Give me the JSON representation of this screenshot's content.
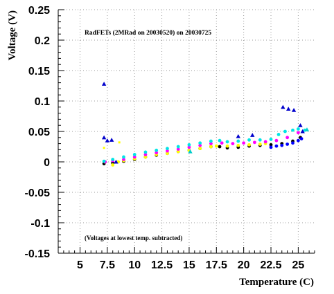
{
  "chart_data": {
    "type": "scatter",
    "title": "RadFETs (2MRad on 20030520) on 20030725",
    "annotation": "(Voltages at lowest temp. subtracted)",
    "xlabel": "Temperature (C)",
    "ylabel": "Voltage (V)",
    "xlim": [
      3.0,
      26.5
    ],
    "ylim": [
      -0.15,
      0.25
    ],
    "x_ticks": [
      5,
      7.5,
      10,
      12.5,
      15,
      17.5,
      20,
      22.5,
      25
    ],
    "x_tick_labels": [
      "5",
      "7.5",
      "10",
      "12.5",
      "15",
      "17.5",
      "20",
      "22.5",
      "25"
    ],
    "y_ticks": [
      -0.15,
      -0.1,
      -0.05,
      0,
      0.05,
      0.1,
      0.15,
      0.2,
      0.25
    ],
    "y_tick_labels": [
      "-0.15",
      "-0.1",
      "-0.05",
      "0",
      "0.05",
      "0.1",
      "0.15",
      "0.2",
      "0.25"
    ],
    "grid": true,
    "colors": {
      "background": "#ffffff",
      "axis": "#000000",
      "grid": "#9a9a9a"
    },
    "series": [
      {
        "color": "#000000",
        "marker": "dot",
        "x": [
          7.2,
          8.0,
          9.0,
          10.0,
          11.0,
          12.0,
          13.0,
          14.0,
          15.0,
          16.0,
          17.0,
          17.8,
          18.5,
          19.5,
          20.5,
          21.5,
          22.5,
          23.5,
          24.5,
          25.2
        ],
        "y": [
          -0.003,
          -0.002,
          0.001,
          0.004,
          0.008,
          0.011,
          0.014,
          0.017,
          0.019,
          0.022,
          0.025,
          0.025,
          0.023,
          0.024,
          0.026,
          0.027,
          0.028,
          0.03,
          0.034,
          0.04
        ]
      },
      {
        "color": "#ffff00",
        "marker": "dot",
        "x": [
          7.3,
          8.0,
          8.5,
          9.0,
          10.0,
          11.0,
          12.0,
          13.0,
          14.0,
          15.0,
          16.0,
          17.0,
          17.5,
          18.5,
          19.5,
          20.5,
          21.5,
          22.0
        ],
        "y": [
          0.0,
          -0.005,
          0.0,
          0.002,
          0.005,
          0.008,
          0.012,
          0.014,
          0.017,
          0.019,
          0.022,
          0.025,
          0.026,
          0.026,
          0.027,
          0.028,
          0.029,
          0.03
        ]
      },
      {
        "color": "#ff00ff",
        "marker": "dot",
        "x": [
          7.3,
          8.0,
          9.0,
          10.0,
          11.0,
          12.0,
          13.0,
          14.0,
          15.0,
          16.0,
          17.0,
          18.0,
          19.0,
          20.0,
          21.0,
          22.0,
          23.0,
          24.0,
          25.0
        ],
        "y": [
          0.0,
          0.002,
          0.004,
          0.008,
          0.012,
          0.015,
          0.018,
          0.021,
          0.024,
          0.027,
          0.03,
          0.031,
          0.03,
          0.031,
          0.032,
          0.033,
          0.035,
          0.04,
          0.048
        ]
      },
      {
        "color": "#00e5e5",
        "marker": "dot",
        "x": [
          7.2,
          8.0,
          9.0,
          10.0,
          11.0,
          12.0,
          13.0,
          14.0,
          15.0,
          16.0,
          17.0,
          17.8,
          18.5,
          19.5,
          20.5,
          21.5,
          22.5,
          23.2,
          23.8,
          24.5,
          25.0,
          25.6
        ],
        "y": [
          0.001,
          0.004,
          0.008,
          0.012,
          0.016,
          0.019,
          0.022,
          0.025,
          0.028,
          0.031,
          0.034,
          0.035,
          0.033,
          0.034,
          0.036,
          0.036,
          0.037,
          0.045,
          0.05,
          0.052,
          0.054,
          0.052
        ]
      },
      {
        "color": "#0000ff",
        "marker": "dot",
        "x": [
          22.5,
          23.0,
          23.5,
          24.0,
          24.5,
          25.0,
          25.3
        ],
        "y": [
          0.024,
          0.026,
          0.027,
          0.029,
          0.031,
          0.035,
          0.038
        ]
      },
      {
        "color": "#0000cc",
        "marker": "triangle",
        "x": [
          7.2,
          7.2,
          7.5,
          7.9,
          8.3,
          19.5,
          20.8,
          23.6,
          24.1,
          24.6,
          25.2,
          25.4
        ],
        "y": [
          0.128,
          0.04,
          0.035,
          0.036,
          0.0,
          0.042,
          0.044,
          0.09,
          0.087,
          0.085,
          0.06,
          0.05
        ]
      },
      {
        "color": "#ffff00",
        "marker": "star",
        "x": [
          7.2,
          8.6
        ],
        "y": [
          0.023,
          0.032
        ]
      },
      {
        "color": "#00cccc",
        "marker": "triangle",
        "x": [
          15.1,
          25.8
        ],
        "y": [
          0.017,
          0.053
        ]
      }
    ]
  }
}
